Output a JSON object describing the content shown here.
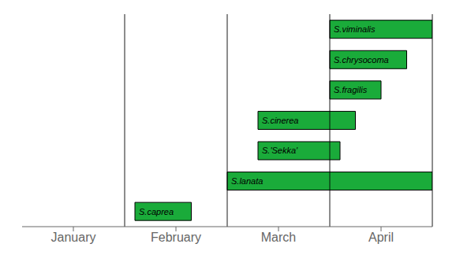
{
  "chart_data": {
    "type": "bar",
    "orientation": "horizontal",
    "categories": [
      "S.viminalis",
      "S.chrysocoma",
      "S.fragilis",
      "S.cinerea",
      "S.'Sekka'",
      "S.lanata",
      "S.caprea"
    ],
    "values": [
      [
        3.0,
        4.0
      ],
      [
        3.0,
        3.75
      ],
      [
        3.0,
        3.5
      ],
      [
        2.3,
        3.25
      ],
      [
        2.3,
        3.1
      ],
      [
        2.0,
        4.0
      ],
      [
        1.1,
        1.65
      ]
    ],
    "color": "#1aab3a",
    "xlim": [
      0,
      4.0
    ],
    "xticks": [
      {
        "value": 0.5,
        "label": "January"
      },
      {
        "value": 1.5,
        "label": "February"
      },
      {
        "value": 2.5,
        "label": "March"
      },
      {
        "value": 3.5,
        "label": "April"
      }
    ],
    "vlines": [
      1,
      2,
      3,
      4
    ],
    "grid": false,
    "data_labels": true,
    "tick_labels": "x"
  }
}
